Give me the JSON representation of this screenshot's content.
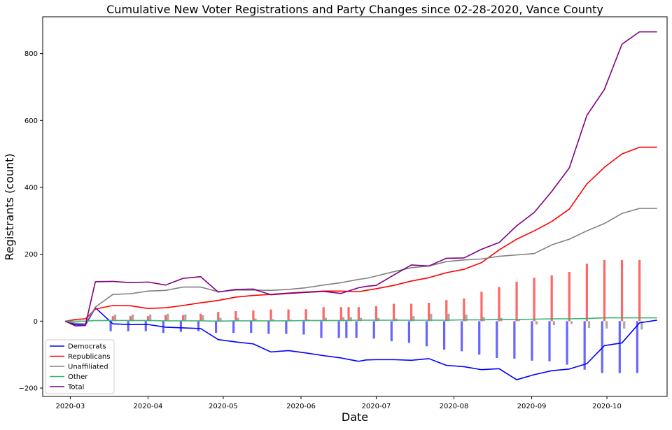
{
  "chart_data": {
    "type": "line",
    "title": "Cumulative New Voter Registrations and Party Changes since 02-28-2020, Vance County",
    "xlabel": "Date",
    "ylabel": "Registrants (count)",
    "xlim": [
      "2020-02-19",
      "2020-10-25"
    ],
    "ylim": [
      -225,
      910
    ],
    "xticks": [
      "2020-03-01",
      "2020-04-01",
      "2020-05-01",
      "2020-06-01",
      "2020-07-01",
      "2020-08-01",
      "2020-09-01",
      "2020-10-01"
    ],
    "xtick_labels": [
      "2020-03",
      "2020-04",
      "2020-05",
      "2020-06",
      "2020-07",
      "2020-08",
      "2020-09",
      "2020-10"
    ],
    "yticks": [
      -200,
      0,
      200,
      400,
      600,
      800
    ],
    "ytick_labels": [
      "−200",
      "0",
      "200",
      "400",
      "600",
      "800"
    ],
    "grid": false,
    "legend_position": "lower-left",
    "x": [
      "2020-02-28",
      "2020-03-03",
      "2020-03-07",
      "2020-03-11",
      "2020-03-18",
      "2020-03-25",
      "2020-04-01",
      "2020-04-08",
      "2020-04-15",
      "2020-04-22",
      "2020-04-29",
      "2020-05-06",
      "2020-05-13",
      "2020-05-20",
      "2020-05-27",
      "2020-06-03",
      "2020-06-10",
      "2020-06-17",
      "2020-06-24",
      "2020-06-27",
      "2020-07-01",
      "2020-07-08",
      "2020-07-15",
      "2020-07-22",
      "2020-07-29",
      "2020-08-05",
      "2020-08-12",
      "2020-08-19",
      "2020-08-26",
      "2020-09-02",
      "2020-09-09",
      "2020-09-16",
      "2020-09-23",
      "2020-09-30",
      "2020-10-07",
      "2020-10-14",
      "2020-10-21"
    ],
    "series": [
      {
        "name": "Democrats",
        "color": "#0000ff",
        "values": [
          0,
          -10,
          -12,
          40,
          -8,
          -10,
          -10,
          -18,
          -20,
          -22,
          -55,
          -62,
          -68,
          -92,
          -88,
          -95,
          -103,
          -110,
          -120,
          -116,
          -115,
          -115,
          -117,
          -112,
          -132,
          -136,
          -145,
          -142,
          -175,
          -160,
          -148,
          -143,
          -127,
          -73,
          -65,
          -5,
          3
        ]
      },
      {
        "name": "Republicans",
        "color": "#ff0000",
        "values": [
          0,
          5,
          7,
          36,
          47,
          46,
          38,
          40,
          47,
          55,
          62,
          72,
          77,
          80,
          84,
          87,
          90,
          90,
          88,
          92,
          97,
          107,
          120,
          130,
          145,
          155,
          175,
          213,
          245,
          270,
          298,
          335,
          410,
          460,
          500,
          520,
          520
        ]
      },
      {
        "name": "Unaffiliated",
        "color": "#808080",
        "values": [
          0,
          -6,
          -8,
          42,
          80,
          82,
          90,
          92,
          102,
          102,
          88,
          93,
          93,
          92,
          95,
          100,
          108,
          115,
          125,
          128,
          135,
          148,
          160,
          165,
          178,
          183,
          186,
          194,
          198,
          202,
          228,
          245,
          270,
          292,
          322,
          337,
          337
        ]
      },
      {
        "name": "Other",
        "color": "#3cb371",
        "values": [
          0,
          0,
          0,
          2,
          2,
          2,
          2,
          1,
          1,
          1,
          0,
          1,
          1,
          1,
          1,
          2,
          2,
          2,
          3,
          3,
          3,
          3,
          3,
          3,
          3,
          4,
          4,
          5,
          5,
          6,
          7,
          7,
          8,
          10,
          10,
          10,
          10
        ]
      },
      {
        "name": "Total",
        "color": "#800080",
        "values": [
          0,
          -14,
          -13,
          118,
          119,
          115,
          117,
          108,
          128,
          133,
          87,
          95,
          96,
          79,
          83,
          86,
          89,
          83,
          100,
          104,
          107,
          138,
          168,
          165,
          188,
          189,
          215,
          235,
          285,
          325,
          388,
          458,
          615,
          693,
          828,
          865,
          865
        ]
      }
    ],
    "bars": {
      "x": [
        "2020-03-18",
        "2020-03-25",
        "2020-04-01",
        "2020-04-08",
        "2020-04-15",
        "2020-04-22",
        "2020-04-29",
        "2020-05-06",
        "2020-05-13",
        "2020-05-20",
        "2020-05-27",
        "2020-06-03",
        "2020-06-10",
        "2020-06-17",
        "2020-06-20",
        "2020-06-24",
        "2020-07-01",
        "2020-07-08",
        "2020-07-15",
        "2020-07-22",
        "2020-07-29",
        "2020-08-05",
        "2020-08-12",
        "2020-08-19",
        "2020-08-26",
        "2020-09-02",
        "2020-09-09",
        "2020-09-16",
        "2020-09-23",
        "2020-09-30",
        "2020-10-07",
        "2020-10-14"
      ],
      "series": [
        {
          "name": "Democrats",
          "color": "#6666ff",
          "values": [
            -30,
            -30,
            -30,
            -35,
            -32,
            -30,
            -35,
            -35,
            -35,
            -38,
            -38,
            -40,
            -50,
            -50,
            -50,
            -50,
            -52,
            -60,
            -65,
            -75,
            -85,
            -90,
            -100,
            -110,
            -112,
            -118,
            -120,
            -130,
            -145,
            -155,
            -155,
            -155
          ]
        },
        {
          "name": "Republicans",
          "color": "#ff6666",
          "values": [
            15,
            15,
            15,
            18,
            18,
            22,
            28,
            30,
            32,
            35,
            35,
            36,
            42,
            42,
            42,
            42,
            45,
            52,
            52,
            55,
            63,
            68,
            88,
            102,
            118,
            130,
            137,
            147,
            172,
            183,
            183,
            183
          ]
        },
        {
          "name": "Unaffiliated",
          "color": "#a9a9a9",
          "values": [
            20,
            20,
            20,
            22,
            20,
            18,
            10,
            10,
            8,
            6,
            5,
            5,
            10,
            12,
            12,
            10,
            10,
            8,
            15,
            22,
            22,
            20,
            12,
            10,
            5,
            -10,
            -12,
            -8,
            -20,
            -22,
            -22,
            -25
          ]
        }
      ]
    }
  }
}
